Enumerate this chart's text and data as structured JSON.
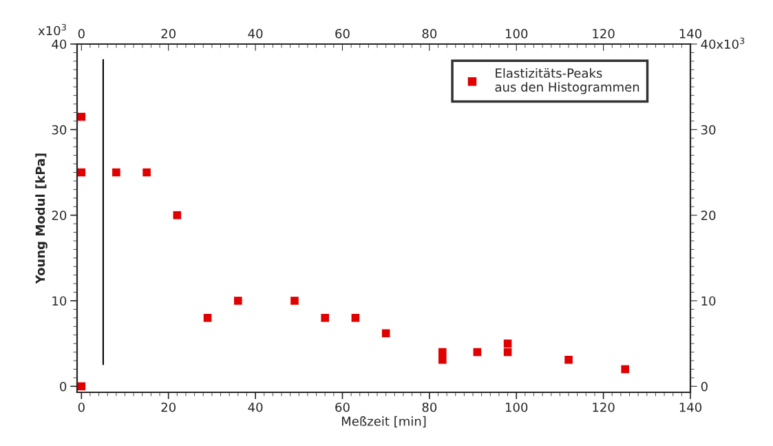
{
  "chart_data": {
    "type": "scatter",
    "xlabel": "Meßzeit [min]",
    "ylabel": "Young Modul [kPa]",
    "series": [
      {
        "name": "Elastizitäts-Peaks\naus den Histogrammen",
        "color": "#e00000",
        "x": [
          0,
          0,
          0,
          8,
          15,
          22,
          29,
          36,
          49,
          56,
          63,
          70,
          83,
          83,
          91,
          98,
          98,
          112,
          125
        ],
        "values": [
          0,
          25,
          31.5,
          25,
          25,
          20,
          8,
          10,
          10,
          8,
          8,
          6.2,
          4,
          3.1,
          4,
          5,
          4,
          3.1,
          2
        ]
      }
    ],
    "marker": "square",
    "legend": "top right",
    "grid": false,
    "xlim": [
      -1,
      140
    ],
    "xticks": [
      0,
      20,
      40,
      60,
      80,
      100,
      120,
      140
    ],
    "x2lim": [
      -1,
      140
    ],
    "x2ticks": [
      0,
      20,
      40,
      60,
      80,
      100,
      120,
      140
    ],
    "ylim": [
      -0.7,
      40
    ],
    "yticks": [
      0,
      10,
      20,
      30,
      40
    ],
    "y2lim": [
      -0.7,
      40
    ],
    "y2ticks": [
      0,
      10,
      20,
      30,
      40
    ],
    "annotations": [
      "x10$^{3}$",
      "x10$^{3}$"
    ],
    "ref_lines": [
      {
        "axis": "x",
        "value": 5,
        "color": "#000000"
      }
    ]
  }
}
